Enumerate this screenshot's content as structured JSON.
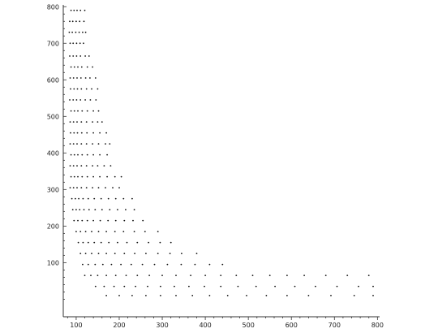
{
  "chart_data": {
    "type": "scatter",
    "title": "",
    "xlabel": "",
    "ylabel": "",
    "xlim": [
      70,
      805
    ],
    "ylim": [
      -48,
      805
    ],
    "xticks": [
      100,
      200,
      300,
      400,
      500,
      600,
      700,
      800
    ],
    "yticks": [
      100,
      200,
      300,
      400,
      500,
      600,
      700,
      800
    ],
    "xtick_labels": [
      "100",
      "200",
      "300",
      "400",
      "500",
      "600",
      "700",
      "800"
    ],
    "ytick_labels": [
      "100",
      "200",
      "300",
      "400",
      "500",
      "600",
      "700",
      "800"
    ],
    "grid": false,
    "marker_color": "#111111",
    "series": [
      {
        "points": [
          [
            88,
            790
          ],
          [
            95,
            790
          ],
          [
            102,
            790
          ],
          [
            110,
            790
          ],
          [
            120,
            790
          ],
          [
            85,
            760
          ],
          [
            92,
            760
          ],
          [
            100,
            760
          ],
          [
            108,
            760
          ],
          [
            118,
            760
          ],
          [
            84,
            730
          ],
          [
            91,
            730
          ],
          [
            99,
            730
          ],
          [
            107,
            730
          ],
          [
            115,
            730
          ],
          [
            122,
            730
          ],
          [
            86,
            700
          ],
          [
            93,
            700
          ],
          [
            101,
            700
          ],
          [
            109,
            700
          ],
          [
            117,
            700
          ],
          [
            85,
            665
          ],
          [
            93,
            665
          ],
          [
            101,
            665
          ],
          [
            110,
            665
          ],
          [
            121,
            665
          ],
          [
            130,
            665
          ],
          [
            88,
            635
          ],
          [
            96,
            635
          ],
          [
            104,
            635
          ],
          [
            113,
            635
          ],
          [
            126,
            635
          ],
          [
            138,
            635
          ],
          [
            86,
            605
          ],
          [
            94,
            605
          ],
          [
            102,
            605
          ],
          [
            111,
            605
          ],
          [
            122,
            605
          ],
          [
            132,
            605
          ],
          [
            145,
            605
          ],
          [
            87,
            575
          ],
          [
            95,
            575
          ],
          [
            103,
            575
          ],
          [
            112,
            575
          ],
          [
            124,
            575
          ],
          [
            136,
            575
          ],
          [
            150,
            575
          ],
          [
            85,
            545
          ],
          [
            93,
            545
          ],
          [
            101,
            545
          ],
          [
            110,
            545
          ],
          [
            121,
            545
          ],
          [
            133,
            545
          ],
          [
            146,
            545
          ],
          [
            88,
            515
          ],
          [
            96,
            515
          ],
          [
            104,
            515
          ],
          [
            114,
            515
          ],
          [
            126,
            515
          ],
          [
            140,
            515
          ],
          [
            152,
            515
          ],
          [
            86,
            485
          ],
          [
            94,
            485
          ],
          [
            102,
            485
          ],
          [
            112,
            485
          ],
          [
            124,
            485
          ],
          [
            138,
            485
          ],
          [
            150,
            485
          ],
          [
            160,
            485
          ],
          [
            87,
            455
          ],
          [
            95,
            455
          ],
          [
            103,
            455
          ],
          [
            113,
            455
          ],
          [
            125,
            455
          ],
          [
            140,
            455
          ],
          [
            155,
            455
          ],
          [
            170,
            455
          ],
          [
            86,
            425
          ],
          [
            94,
            425
          ],
          [
            102,
            425
          ],
          [
            112,
            425
          ],
          [
            124,
            425
          ],
          [
            138,
            425
          ],
          [
            152,
            425
          ],
          [
            168,
            425
          ],
          [
            178,
            425
          ],
          [
            88,
            395
          ],
          [
            96,
            395
          ],
          [
            104,
            395
          ],
          [
            114,
            395
          ],
          [
            126,
            395
          ],
          [
            140,
            395
          ],
          [
            155,
            395
          ],
          [
            172,
            395
          ],
          [
            86,
            365
          ],
          [
            94,
            365
          ],
          [
            102,
            365
          ],
          [
            112,
            365
          ],
          [
            124,
            365
          ],
          [
            138,
            365
          ],
          [
            150,
            365
          ],
          [
            165,
            365
          ],
          [
            180,
            365
          ],
          [
            88,
            335
          ],
          [
            96,
            335
          ],
          [
            104,
            335
          ],
          [
            114,
            335
          ],
          [
            126,
            335
          ],
          [
            140,
            335
          ],
          [
            155,
            335
          ],
          [
            172,
            335
          ],
          [
            190,
            335
          ],
          [
            205,
            335
          ],
          [
            86,
            305
          ],
          [
            94,
            305
          ],
          [
            102,
            305
          ],
          [
            112,
            305
          ],
          [
            124,
            305
          ],
          [
            138,
            305
          ],
          [
            152,
            305
          ],
          [
            168,
            305
          ],
          [
            185,
            305
          ],
          [
            200,
            305
          ],
          [
            90,
            275
          ],
          [
            98,
            275
          ],
          [
            106,
            275
          ],
          [
            116,
            275
          ],
          [
            128,
            275
          ],
          [
            142,
            275
          ],
          [
            158,
            275
          ],
          [
            175,
            275
          ],
          [
            192,
            275
          ],
          [
            210,
            275
          ],
          [
            230,
            275
          ],
          [
            92,
            245
          ],
          [
            100,
            245
          ],
          [
            108,
            245
          ],
          [
            118,
            245
          ],
          [
            130,
            245
          ],
          [
            144,
            245
          ],
          [
            160,
            245
          ],
          [
            178,
            245
          ],
          [
            196,
            245
          ],
          [
            215,
            245
          ],
          [
            235,
            245
          ],
          [
            95,
            215
          ],
          [
            104,
            215
          ],
          [
            114,
            215
          ],
          [
            126,
            215
          ],
          [
            140,
            215
          ],
          [
            156,
            215
          ],
          [
            174,
            215
          ],
          [
            192,
            215
          ],
          [
            212,
            215
          ],
          [
            232,
            215
          ],
          [
            255,
            215
          ],
          [
            100,
            185
          ],
          [
            110,
            185
          ],
          [
            122,
            185
          ],
          [
            136,
            185
          ],
          [
            152,
            185
          ],
          [
            170,
            185
          ],
          [
            190,
            185
          ],
          [
            210,
            185
          ],
          [
            235,
            185
          ],
          [
            260,
            185
          ],
          [
            290,
            185
          ],
          [
            105,
            155
          ],
          [
            116,
            155
          ],
          [
            128,
            155
          ],
          [
            142,
            155
          ],
          [
            158,
            155
          ],
          [
            176,
            155
          ],
          [
            196,
            155
          ],
          [
            218,
            155
          ],
          [
            242,
            155
          ],
          [
            268,
            155
          ],
          [
            295,
            155
          ],
          [
            320,
            155
          ],
          [
            110,
            125
          ],
          [
            122,
            125
          ],
          [
            136,
            125
          ],
          [
            152,
            125
          ],
          [
            170,
            125
          ],
          [
            190,
            125
          ],
          [
            212,
            125
          ],
          [
            236,
            125
          ],
          [
            262,
            125
          ],
          [
            290,
            125
          ],
          [
            318,
            125
          ],
          [
            345,
            125
          ],
          [
            380,
            125
          ],
          [
            115,
            95
          ],
          [
            128,
            95
          ],
          [
            144,
            95
          ],
          [
            162,
            95
          ],
          [
            182,
            95
          ],
          [
            204,
            95
          ],
          [
            228,
            95
          ],
          [
            254,
            95
          ],
          [
            282,
            95
          ],
          [
            312,
            95
          ],
          [
            344,
            95
          ],
          [
            376,
            95
          ],
          [
            410,
            95
          ],
          [
            440,
            95
          ],
          [
            120,
            65
          ],
          [
            134,
            65
          ],
          [
            150,
            65
          ],
          [
            170,
            65
          ],
          [
            192,
            65
          ],
          [
            216,
            65
          ],
          [
            242,
            65
          ],
          [
            270,
            65
          ],
          [
            300,
            65
          ],
          [
            332,
            65
          ],
          [
            366,
            65
          ],
          [
            400,
            65
          ],
          [
            436,
            65
          ],
          [
            472,
            65
          ],
          [
            510,
            65
          ],
          [
            550,
            65
          ],
          [
            590,
            65
          ],
          [
            630,
            65
          ],
          [
            680,
            65
          ],
          [
            730,
            65
          ],
          [
            780,
            65
          ],
          [
            145,
            35
          ],
          [
            165,
            35
          ],
          [
            188,
            35
          ],
          [
            212,
            35
          ],
          [
            238,
            35
          ],
          [
            266,
            35
          ],
          [
            296,
            35
          ],
          [
            328,
            35
          ],
          [
            362,
            35
          ],
          [
            398,
            35
          ],
          [
            436,
            35
          ],
          [
            476,
            35
          ],
          [
            518,
            35
          ],
          [
            562,
            35
          ],
          [
            608,
            35
          ],
          [
            656,
            35
          ],
          [
            706,
            35
          ],
          [
            756,
            35
          ],
          [
            790,
            35
          ],
          [
            170,
            10
          ],
          [
            200,
            10
          ],
          [
            230,
            10
          ],
          [
            262,
            10
          ],
          [
            296,
            10
          ],
          [
            332,
            10
          ],
          [
            370,
            10
          ],
          [
            410,
            10
          ],
          [
            452,
            10
          ],
          [
            496,
            10
          ],
          [
            542,
            10
          ],
          [
            590,
            10
          ],
          [
            640,
            10
          ],
          [
            692,
            10
          ],
          [
            746,
            10
          ],
          [
            790,
            10
          ]
        ]
      }
    ]
  }
}
